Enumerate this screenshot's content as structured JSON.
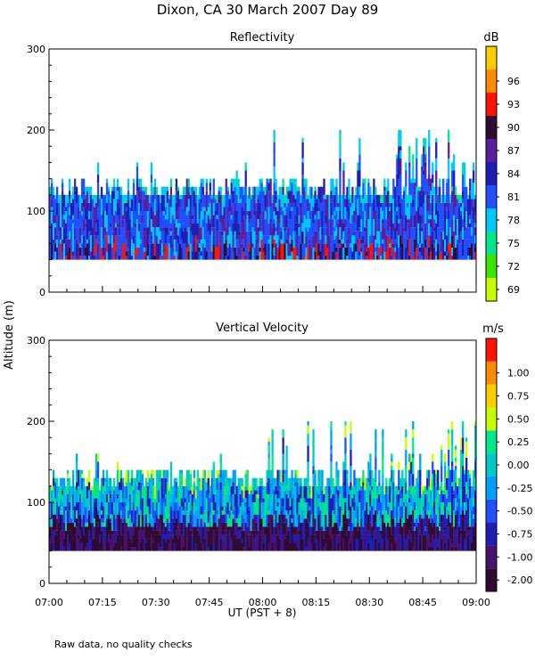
{
  "title": "Dixon, CA 30 March 2007  Day  89",
  "ylabel_shared": "Altitude (m)",
  "footnote": "Raw data, no quality checks",
  "chart_data": [
    {
      "type": "heatmap",
      "title": "Reflectivity",
      "colorbar_unit": "dB",
      "colorbar_ticks": [
        "69",
        "72",
        "75",
        "78",
        "81",
        "84",
        "87",
        "90",
        "93",
        "96"
      ],
      "colorbar_values": [
        69,
        72,
        75,
        78,
        81,
        84,
        87,
        90,
        93,
        96
      ],
      "colorbar_colors": [
        "#c8ff00",
        "#39e600",
        "#00e68a",
        "#00c8ff",
        "#1e50ff",
        "#1e1eb4",
        "#5a1ea0",
        "#300a30",
        "#ff1400",
        "#ff8c00",
        "#ffcc00"
      ],
      "ylim": [
        0,
        300
      ],
      "yticks": [
        "0",
        "100",
        "200",
        "300"
      ],
      "ytick_values": [
        0,
        100,
        200,
        300
      ],
      "xlim": [
        0,
        120
      ],
      "echo_base_altitude_m": 40,
      "echo_top_altitude_m": {
        "typical": 140,
        "max": 200
      },
      "colors": {
        "low": "#1e50ff",
        "mid": "#5a1ea0",
        "high": "#ff1400",
        "edge": "#00c8ff"
      }
    },
    {
      "type": "heatmap",
      "title": "Vertical Velocity",
      "colorbar_unit": "m/s",
      "colorbar_ticks": [
        "-2.00",
        "-1.00",
        "-0.75",
        "-0.50",
        "-0.25",
        "0.00",
        "0.25",
        "0.50",
        "0.75",
        "1.00"
      ],
      "colorbar_values": [
        -2.0,
        -1.0,
        -0.75,
        -0.5,
        -0.25,
        0.0,
        0.25,
        0.5,
        0.75,
        1.0
      ],
      "colorbar_colors": [
        "#300a30",
        "#4a1070",
        "#1e1eb4",
        "#1e50ff",
        "#00a0ff",
        "#00c8c8",
        "#00e68a",
        "#c8ff00",
        "#ffcc00",
        "#ff8c00",
        "#ff1400"
      ],
      "ylim": [
        0,
        300
      ],
      "yticks": [
        "0",
        "100",
        "200",
        "300"
      ],
      "ytick_values": [
        0,
        100,
        200,
        300
      ],
      "xlim": [
        0,
        120
      ],
      "echo_base_altitude_m": 40,
      "echo_top_altitude_m": {
        "typical": 140,
        "max": 200
      }
    }
  ],
  "xaxis": {
    "label": "UT  (PST + 8)",
    "tick_labels": [
      "07:00",
      "07:15",
      "07:30",
      "07:45",
      "08:00",
      "08:15",
      "08:30",
      "08:45",
      "09:00"
    ],
    "tick_minutes": [
      0,
      15,
      30,
      45,
      60,
      75,
      90,
      105,
      120
    ]
  }
}
